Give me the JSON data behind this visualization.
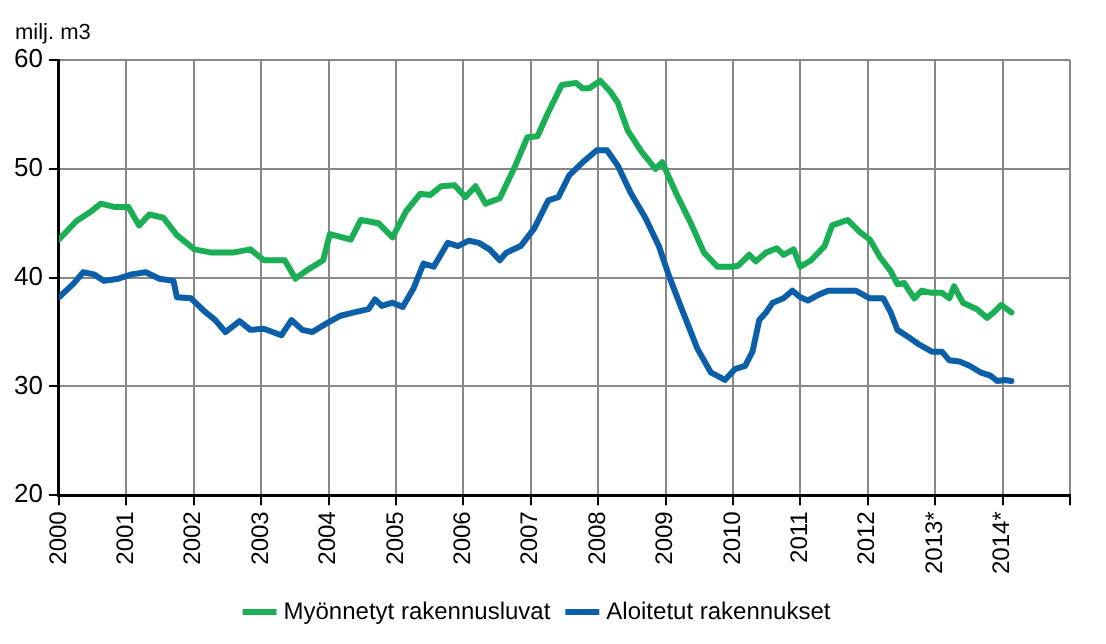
{
  "chart_data": {
    "type": "line",
    "ylabel": "milj. m3",
    "xlim": [
      2000,
      2015
    ],
    "xticks": [
      {
        "value": 2000,
        "label": "2000"
      },
      {
        "value": 2001,
        "label": "2001"
      },
      {
        "value": 2002,
        "label": "2002"
      },
      {
        "value": 2003,
        "label": "2003"
      },
      {
        "value": 2004,
        "label": "2004"
      },
      {
        "value": 2005,
        "label": "2005"
      },
      {
        "value": 2006,
        "label": "2006"
      },
      {
        "value": 2007,
        "label": "2007"
      },
      {
        "value": 2008,
        "label": "2008"
      },
      {
        "value": 2009,
        "label": "2009"
      },
      {
        "value": 2010,
        "label": "2010"
      },
      {
        "value": 2011,
        "label": "2011"
      },
      {
        "value": 2012,
        "label": "2012"
      },
      {
        "value": 2013,
        "label": "2013*"
      },
      {
        "value": 2014,
        "label": "2014*"
      },
      {
        "value": 2015,
        "label": null
      }
    ],
    "ylim": [
      20,
      60
    ],
    "yticks": [
      20,
      30,
      40,
      50,
      60
    ],
    "grid": true,
    "legend": "bottom",
    "marker": "none",
    "line_style": "solid",
    "series": [
      {
        "name": "Myönnetyt rakennusluvat",
        "color": "#1aaf54",
        "x": [
          2000.0,
          2000.26,
          2000.46,
          2000.62,
          2000.82,
          2001.03,
          2001.19,
          2001.34,
          2001.55,
          2001.75,
          2002.01,
          2002.27,
          2002.58,
          2002.84,
          2003.04,
          2003.35,
          2003.51,
          2003.66,
          2003.92,
          2004.02,
          2004.33,
          2004.48,
          2004.74,
          2004.95,
          2005.15,
          2005.36,
          2005.51,
          2005.67,
          2005.87,
          2006.03,
          2006.18,
          2006.33,
          2006.54,
          2006.75,
          2006.95,
          2007.1,
          2007.26,
          2007.46,
          2007.67,
          2007.77,
          2007.87,
          2008.03,
          2008.18,
          2008.29,
          2008.44,
          2008.64,
          2008.85,
          2008.95,
          2009.16,
          2009.36,
          2009.57,
          2009.77,
          2009.98,
          2010.08,
          2010.24,
          2010.34,
          2010.49,
          2010.65,
          2010.75,
          2010.9,
          2011.0,
          2011.16,
          2011.36,
          2011.47,
          2011.7,
          2011.88,
          2012.03,
          2012.18,
          2012.34,
          2012.44,
          2012.54,
          2012.69,
          2012.8,
          2012.95,
          2013.1,
          2013.21,
          2013.28,
          2013.41,
          2013.62,
          2013.77,
          2013.87,
          2013.98,
          2014.13
        ],
        "values": [
          43.5,
          45.2,
          46.0,
          46.8,
          46.5,
          46.5,
          44.8,
          45.8,
          45.5,
          43.9,
          42.6,
          42.3,
          42.3,
          42.6,
          41.6,
          41.6,
          39.9,
          40.6,
          41.6,
          44.0,
          43.5,
          45.3,
          45.0,
          43.7,
          46.1,
          47.7,
          47.6,
          48.4,
          48.5,
          47.4,
          48.4,
          46.8,
          47.3,
          50.0,
          52.9,
          53.0,
          55.2,
          57.7,
          57.9,
          57.4,
          57.4,
          58.1,
          57.1,
          56.1,
          53.5,
          51.6,
          50.0,
          50.6,
          47.7,
          45.2,
          42.3,
          41.0,
          41.0,
          41.1,
          42.1,
          41.5,
          42.3,
          42.7,
          42.1,
          42.6,
          41.0,
          41.6,
          42.9,
          44.8,
          45.3,
          44.2,
          43.5,
          41.9,
          40.6,
          39.4,
          39.5,
          38.1,
          38.8,
          38.6,
          38.6,
          38.1,
          39.2,
          37.7,
          37.1,
          36.3,
          36.8,
          37.5,
          36.8
        ]
      },
      {
        "name": "Aloitetut rakennukset",
        "color": "#0b5ea8",
        "x": [
          2000.0,
          2000.21,
          2000.36,
          2000.52,
          2000.67,
          2000.88,
          2001.08,
          2001.29,
          2001.49,
          2001.7,
          2001.75,
          2001.96,
          2002.16,
          2002.32,
          2002.47,
          2002.68,
          2002.84,
          2003.04,
          2003.3,
          2003.45,
          2003.61,
          2003.76,
          2003.97,
          2004.18,
          2004.38,
          2004.59,
          2004.69,
          2004.79,
          2004.95,
          2005.1,
          2005.26,
          2005.41,
          2005.56,
          2005.77,
          2005.92,
          2006.08,
          2006.23,
          2006.39,
          2006.54,
          2006.64,
          2006.85,
          2007.05,
          2007.26,
          2007.41,
          2007.57,
          2007.77,
          2007.98,
          2008.13,
          2008.29,
          2008.49,
          2008.7,
          2008.9,
          2009.06,
          2009.26,
          2009.47,
          2009.67,
          2009.88,
          2010.03,
          2010.18,
          2010.29,
          2010.39,
          2010.49,
          2010.59,
          2010.75,
          2010.88,
          2011.0,
          2011.11,
          2011.26,
          2011.41,
          2011.67,
          2011.82,
          2012.03,
          2012.23,
          2012.34,
          2012.44,
          2012.59,
          2012.75,
          2012.95,
          2013.1,
          2013.21,
          2013.36,
          2013.51,
          2013.67,
          2013.82,
          2013.92,
          2014.03,
          2014.13
        ],
        "values": [
          38.2,
          39.4,
          40.5,
          40.3,
          39.7,
          39.9,
          40.3,
          40.5,
          39.9,
          39.7,
          38.2,
          38.1,
          36.9,
          36.1,
          35.0,
          36.0,
          35.2,
          35.3,
          34.7,
          36.1,
          35.2,
          35.0,
          35.8,
          36.5,
          36.8,
          37.1,
          38.0,
          37.4,
          37.7,
          37.3,
          39.0,
          41.3,
          41.0,
          43.2,
          42.9,
          43.4,
          43.2,
          42.6,
          41.6,
          42.3,
          42.9,
          44.5,
          47.1,
          47.4,
          49.4,
          50.6,
          51.7,
          51.7,
          50.3,
          47.7,
          45.5,
          42.9,
          40.0,
          36.8,
          33.5,
          31.3,
          30.6,
          31.6,
          31.9,
          33.2,
          36.1,
          36.8,
          37.7,
          38.1,
          38.8,
          38.2,
          37.9,
          38.4,
          38.8,
          38.8,
          38.8,
          38.1,
          38.1,
          36.8,
          35.2,
          34.6,
          33.9,
          33.2,
          33.2,
          32.4,
          32.3,
          31.9,
          31.3,
          31.0,
          30.5,
          30.6,
          30.5
        ]
      }
    ]
  }
}
